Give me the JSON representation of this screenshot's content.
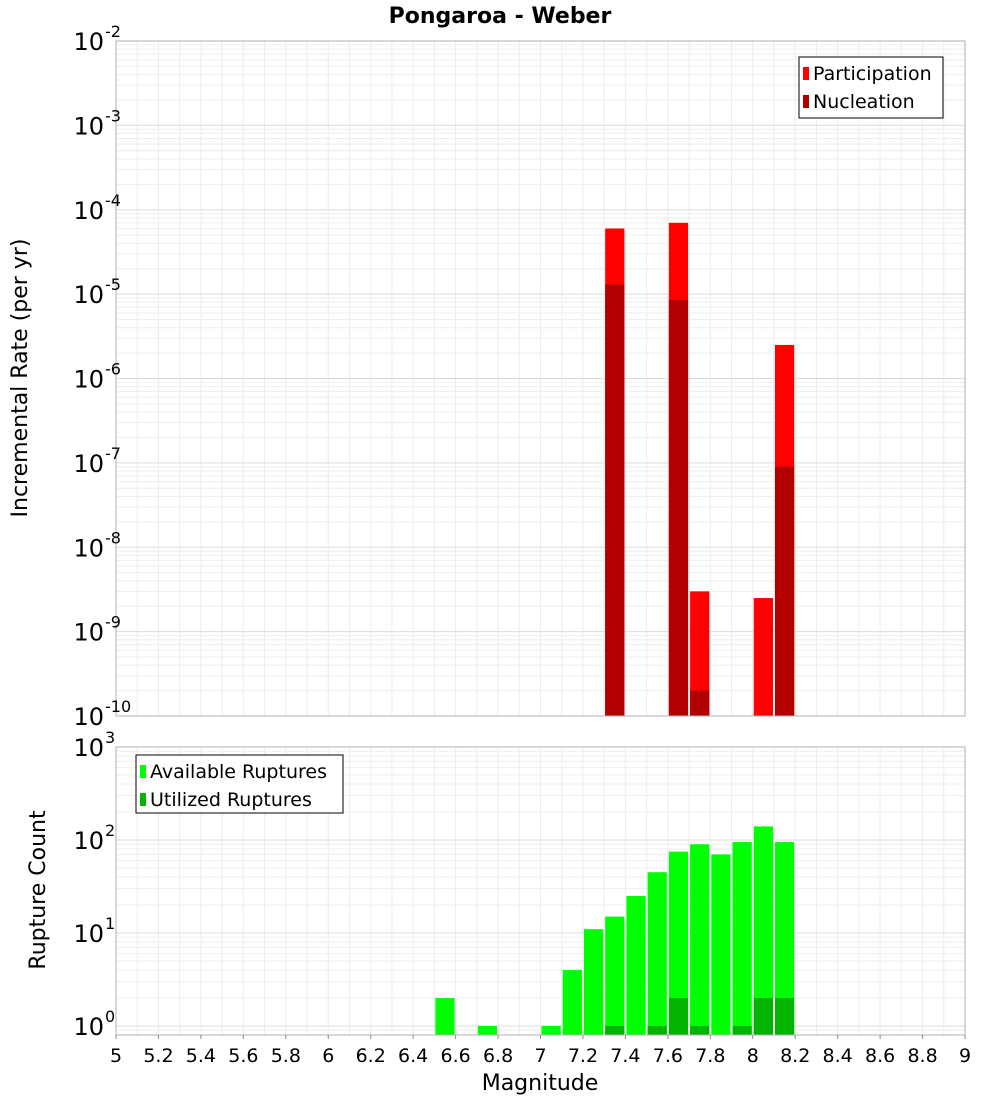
{
  "chart_data": [
    {
      "type": "bar",
      "title": "Pongaroa - Weber",
      "ylabel": "Incremental Rate (per yr)",
      "xlabel": "",
      "xlim": [
        5,
        9
      ],
      "ylim": [
        1e-10,
        0.01
      ],
      "yscale": "log",
      "bin_width": 0.1,
      "y_tick_exponents": [
        -2,
        -3,
        -4,
        -5,
        -6,
        -7,
        -8,
        -9,
        -10
      ],
      "grid": true,
      "legend_position": "top-right",
      "series": [
        {
          "name": "Participation",
          "color": "#ff0000",
          "x": [
            7.35,
            7.65,
            7.75,
            8.05,
            8.15
          ],
          "values": [
            6e-05,
            7e-05,
            3e-09,
            2.5e-09,
            2.5e-06
          ]
        },
        {
          "name": "Nucleation",
          "color": "#b20000",
          "x": [
            7.35,
            7.65,
            7.75,
            8.15
          ],
          "values": [
            1.3e-05,
            8.5e-06,
            2e-10,
            9e-08
          ]
        }
      ]
    },
    {
      "type": "bar",
      "title": "",
      "ylabel": "Rupture Count",
      "xlabel": "Magnitude",
      "xlim": [
        5,
        9
      ],
      "ylim": [
        0.8,
        1000
      ],
      "yscale": "log",
      "bin_width": 0.1,
      "y_tick_exponents": [
        3,
        2,
        1,
        0
      ],
      "x_ticks": [
        "5",
        "5.2",
        "5.4",
        "5.6",
        "5.8",
        "6",
        "6.2",
        "6.4",
        "6.6",
        "6.8",
        "7",
        "7.2",
        "7.4",
        "7.6",
        "7.8",
        "8",
        "8.2",
        "8.4",
        "8.6",
        "8.8",
        "9"
      ],
      "grid": true,
      "legend_position": "top-left",
      "series": [
        {
          "name": "Available Ruptures",
          "color": "#00ff00",
          "x": [
            6.55,
            6.75,
            7.05,
            7.15,
            7.25,
            7.35,
            7.45,
            7.55,
            7.65,
            7.75,
            7.85,
            7.95,
            8.05,
            8.15
          ],
          "values": [
            2,
            1,
            1,
            4,
            11,
            15,
            25,
            45,
            75,
            90,
            70,
            95,
            140,
            95
          ]
        },
        {
          "name": "Utilized Ruptures",
          "color": "#00b400",
          "x": [
            7.35,
            7.55,
            7.65,
            7.75,
            7.95,
            8.05,
            8.15
          ],
          "values": [
            1,
            1,
            2,
            1,
            1,
            2,
            2
          ]
        }
      ]
    }
  ]
}
